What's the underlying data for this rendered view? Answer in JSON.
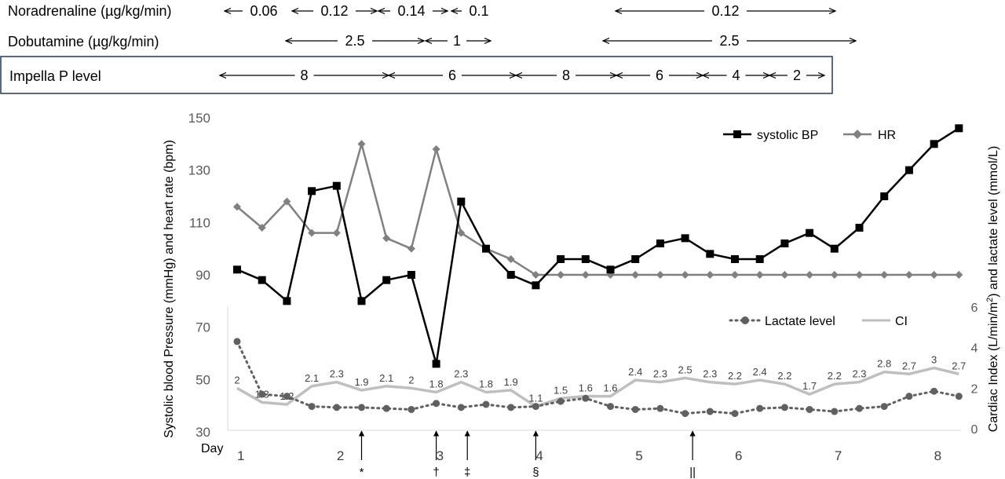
{
  "infusions": {
    "noradrenaline": {
      "label": "Noradrenaline (µg/kg/min)",
      "doses": [
        "0.06",
        "0.12",
        "0.14",
        "0.1",
        "0.12"
      ]
    },
    "dobutamine": {
      "label": "Dobutamine (µg/kg/min)",
      "doses": [
        "2.5",
        "1",
        "2.5"
      ]
    },
    "impella": {
      "label": "Impella P level",
      "levels": [
        "8",
        "6",
        "8",
        "6",
        "4",
        "2"
      ]
    }
  },
  "chart_data": [
    {
      "type": "line",
      "yaxis": "left",
      "ylabel": "Systolic blood Pressure (mmHg) and heart rate (bpm)",
      "ylim": [
        30,
        150
      ],
      "yticks": [
        "30",
        "50",
        "70",
        "90",
        "110",
        "130",
        "150"
      ],
      "xlabel": "Day",
      "day_labels": [
        "1",
        "2",
        "3",
        "4",
        "5",
        "6",
        "7",
        "8"
      ],
      "legend_position": "top-right",
      "series": [
        {
          "name": "systolic BP",
          "color": "#000000",
          "marker": "square",
          "values": [
            92,
            88,
            80,
            122,
            124,
            80,
            88,
            90,
            56,
            118,
            100,
            90,
            86,
            96,
            96,
            92,
            96,
            102,
            104,
            98,
            96,
            96,
            102,
            106,
            100,
            108,
            120,
            130,
            140,
            146
          ]
        },
        {
          "name": "HR",
          "color": "#808080",
          "marker": "diamond",
          "values": [
            116,
            108,
            118,
            106,
            106,
            140,
            104,
            100,
            138,
            106,
            100,
            96,
            90,
            90,
            90,
            90,
            90,
            90,
            90,
            90,
            90,
            90,
            90,
            90,
            90,
            90,
            90,
            90,
            90,
            90
          ]
        }
      ]
    },
    {
      "type": "line",
      "yaxis": "right",
      "ylabel": "Cardiac Index (L/min/m²) and lactate level (mmol/L)",
      "ylim": [
        0,
        6
      ],
      "yticks": [
        "0",
        "2",
        "4",
        "6"
      ],
      "legend_position": "top-right",
      "series": [
        {
          "name": "Lactate level",
          "color": "#606060",
          "style": "dotted",
          "values": [
            4.3,
            1.7,
            1.6,
            1.1,
            1.05,
            1.05,
            1.0,
            0.95,
            1.25,
            1.05,
            1.2,
            1.05,
            1.1,
            1.35,
            1.5,
            1.1,
            0.95,
            1.0,
            0.75,
            0.85,
            0.75,
            1.0,
            1.05,
            0.95,
            0.85,
            1.0,
            1.1,
            1.6,
            1.85,
            1.6
          ]
        },
        {
          "name": "CI",
          "color": "#bfbfbf",
          "style": "solid",
          "labels": [
            "2",
            "1.3",
            "1.2",
            "2.1",
            "2.3",
            "1.9",
            "2.1",
            "2",
            "1.8",
            "2.3",
            "1.8",
            "1.9",
            "1.1",
            "1.5",
            "1.6",
            "1.6",
            "2.4",
            "2.3",
            "2.5",
            "2.3",
            "2.2",
            "2.4",
            "2.2",
            "1.7",
            "2.2",
            "2.3",
            "2.8",
            "2.7",
            "3",
            "2.7"
          ],
          "values": [
            2.0,
            1.3,
            1.2,
            2.1,
            2.3,
            1.9,
            2.1,
            2.0,
            1.8,
            2.3,
            1.8,
            1.9,
            1.1,
            1.5,
            1.6,
            1.6,
            2.4,
            2.3,
            2.5,
            2.3,
            2.2,
            2.4,
            2.2,
            1.7,
            2.2,
            2.3,
            2.8,
            2.7,
            3.0,
            2.7
          ]
        }
      ]
    }
  ],
  "events": [
    {
      "symbol": "*",
      "index": 5
    },
    {
      "symbol": "†",
      "index": 8
    },
    {
      "symbol": "‡",
      "index": 9.25
    },
    {
      "symbol": "§",
      "index": 12
    },
    {
      "symbol": "||",
      "index": 18.3
    }
  ]
}
